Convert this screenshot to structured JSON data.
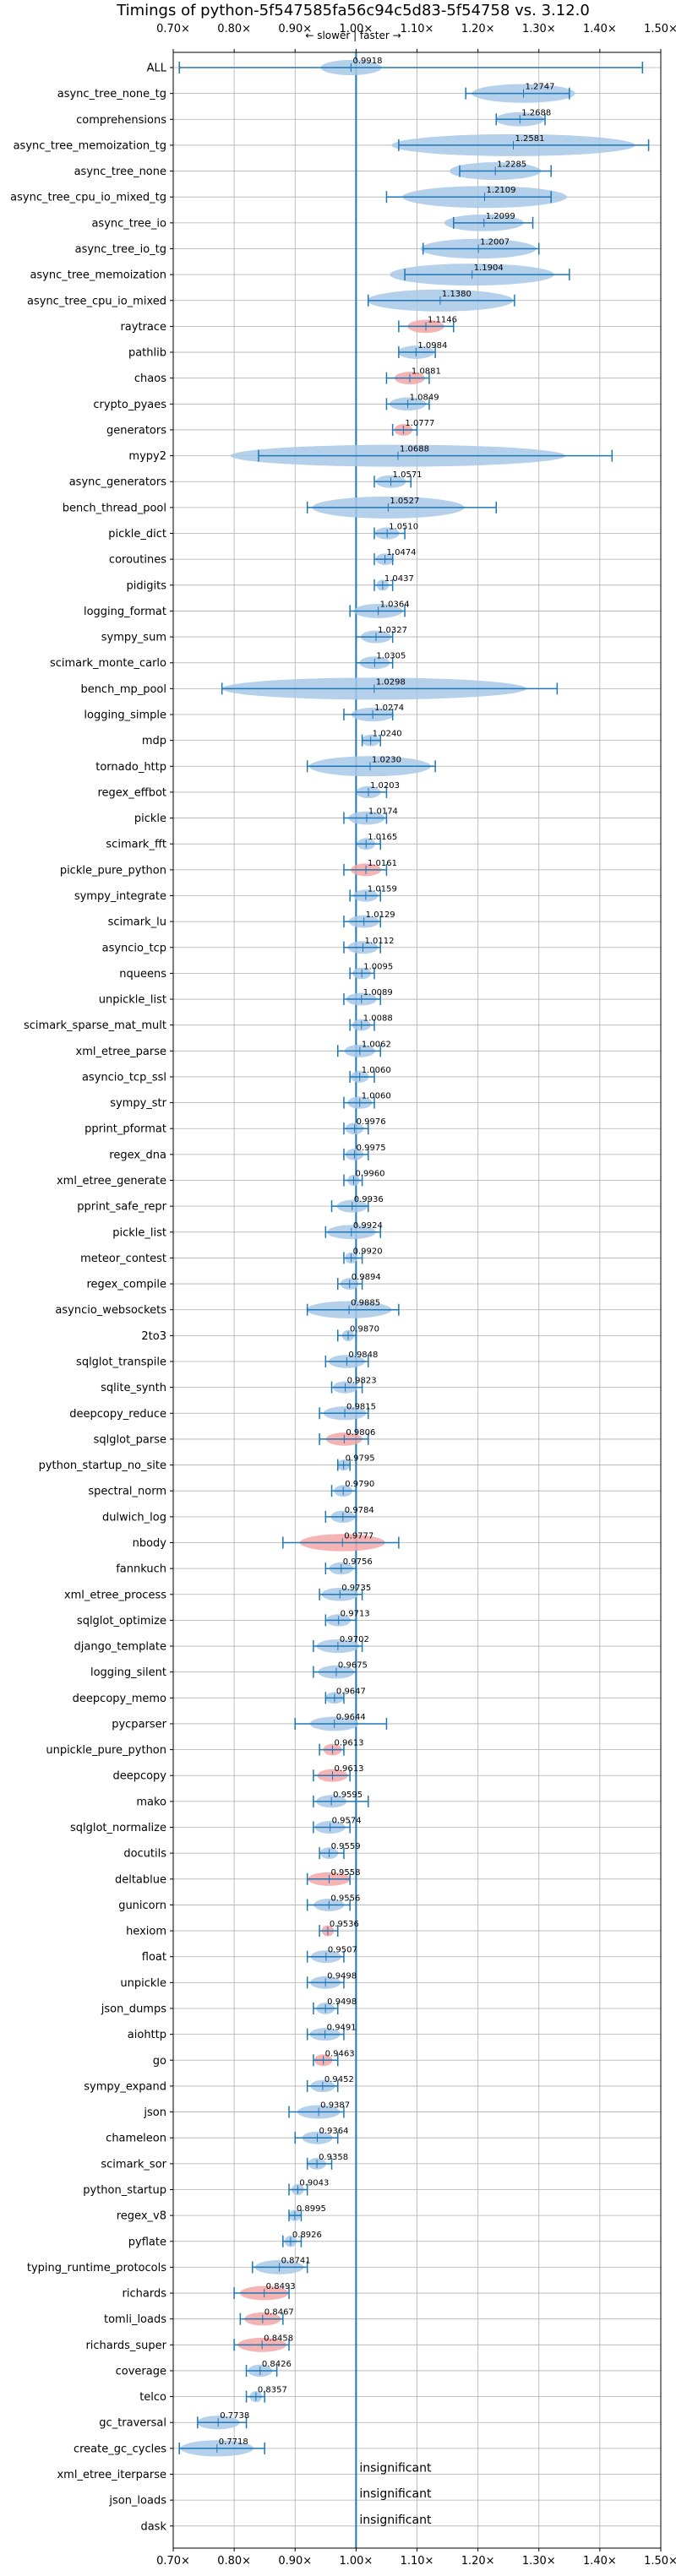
{
  "chart_data": {
    "type": "violin",
    "title": "Timings of python-5f547585fa56c94c5d83-5f54758 vs. 3.12.0",
    "direction_label": "← slower | faster →",
    "xlim": [
      0.7,
      1.5
    ],
    "xticks": [
      0.7,
      0.8,
      0.9,
      1.0,
      1.1,
      1.2,
      1.3,
      1.4,
      1.5
    ],
    "xtick_labels": [
      "0.70×",
      "0.80×",
      "0.90×",
      "1.00×",
      "1.10×",
      "1.20×",
      "1.30×",
      "1.40×",
      "1.50×"
    ],
    "reference_line": 1.0,
    "grid": true,
    "colors": {
      "normal": "#a8c8e8",
      "highlight": "#f4a6a6",
      "whisker": "#1f77b4",
      "refline": "#1f77b4",
      "grid": "#b0b0b0"
    },
    "benchmarks": [
      {
        "name": "ALL",
        "value": 0.9918,
        "label": "0.9918",
        "lo": 0.71,
        "hi": 1.47,
        "spread": 0.1,
        "highlight": false
      },
      {
        "name": "async_tree_none_tg",
        "value": 1.2747,
        "label": "1.2747",
        "lo": 1.18,
        "hi": 1.35,
        "spread": 0.17,
        "highlight": false
      },
      {
        "name": "comprehensions",
        "value": 1.2688,
        "label": "1.2688",
        "lo": 1.23,
        "hi": 1.31,
        "spread": 0.08,
        "highlight": false
      },
      {
        "name": "async_tree_memoization_tg",
        "value": 1.2581,
        "label": "1.2581",
        "lo": 1.07,
        "hi": 1.48,
        "spread": 0.4,
        "highlight": false
      },
      {
        "name": "async_tree_none",
        "value": 1.2285,
        "label": "1.2285",
        "lo": 1.17,
        "hi": 1.32,
        "spread": 0.15,
        "highlight": false
      },
      {
        "name": "async_tree_cpu_io_mixed_tg",
        "value": 1.2109,
        "label": "1.2109",
        "lo": 1.05,
        "hi": 1.32,
        "spread": 0.27,
        "highlight": false
      },
      {
        "name": "async_tree_io",
        "value": 1.2099,
        "label": "1.2099",
        "lo": 1.16,
        "hi": 1.29,
        "spread": 0.13,
        "highlight": false
      },
      {
        "name": "async_tree_io_tg",
        "value": 1.2007,
        "label": "1.2007",
        "lo": 1.11,
        "hi": 1.3,
        "spread": 0.19,
        "highlight": false
      },
      {
        "name": "async_tree_memoization",
        "value": 1.1904,
        "label": "1.1904",
        "lo": 1.08,
        "hi": 1.35,
        "spread": 0.27,
        "highlight": false
      },
      {
        "name": "async_tree_cpu_io_mixed",
        "value": 1.138,
        "label": "1.1380",
        "lo": 1.02,
        "hi": 1.26,
        "spread": 0.24,
        "highlight": false
      },
      {
        "name": "raytrace",
        "value": 1.1146,
        "label": "1.1146",
        "lo": 1.07,
        "hi": 1.16,
        "spread": 0.06,
        "highlight": true
      },
      {
        "name": "pathlib",
        "value": 1.0984,
        "label": "1.0984",
        "lo": 1.07,
        "hi": 1.13,
        "spread": 0.06,
        "highlight": false
      },
      {
        "name": "chaos",
        "value": 1.0881,
        "label": "1.0881",
        "lo": 1.05,
        "hi": 1.12,
        "spread": 0.05,
        "highlight": true
      },
      {
        "name": "crypto_pyaes",
        "value": 1.0849,
        "label": "1.0849",
        "lo": 1.05,
        "hi": 1.12,
        "spread": 0.06,
        "highlight": false
      },
      {
        "name": "generators",
        "value": 1.0777,
        "label": "1.0777",
        "lo": 1.06,
        "hi": 1.1,
        "spread": 0.03,
        "highlight": true
      },
      {
        "name": "mypy2",
        "value": 1.0688,
        "label": "1.0688",
        "lo": 0.84,
        "hi": 1.42,
        "spread": 0.55,
        "highlight": false
      },
      {
        "name": "async_generators",
        "value": 1.0571,
        "label": "1.0571",
        "lo": 1.03,
        "hi": 1.09,
        "spread": 0.05,
        "highlight": false
      },
      {
        "name": "bench_thread_pool",
        "value": 1.0527,
        "label": "1.0527",
        "lo": 0.92,
        "hi": 1.23,
        "spread": 0.25,
        "highlight": false
      },
      {
        "name": "pickle_dict",
        "value": 1.051,
        "label": "1.0510",
        "lo": 1.03,
        "hi": 1.08,
        "spread": 0.04,
        "highlight": false
      },
      {
        "name": "coroutines",
        "value": 1.0474,
        "label": "1.0474",
        "lo": 1.03,
        "hi": 1.06,
        "spread": 0.03,
        "highlight": false
      },
      {
        "name": "pidigits",
        "value": 1.0437,
        "label": "1.0437",
        "lo": 1.03,
        "hi": 1.06,
        "spread": 0.02,
        "highlight": false
      },
      {
        "name": "logging_format",
        "value": 1.0364,
        "label": "1.0364",
        "lo": 0.99,
        "hi": 1.08,
        "spread": 0.08,
        "highlight": false
      },
      {
        "name": "sympy_sum",
        "value": 1.0327,
        "label": "1.0327",
        "lo": 1.0,
        "hi": 1.06,
        "spread": 0.05,
        "highlight": false
      },
      {
        "name": "scimark_monte_carlo",
        "value": 1.0305,
        "label": "1.0305",
        "lo": 1.0,
        "hi": 1.06,
        "spread": 0.05,
        "highlight": false
      },
      {
        "name": "bench_mp_pool",
        "value": 1.0298,
        "label": "1.0298",
        "lo": 0.78,
        "hi": 1.33,
        "spread": 0.5,
        "highlight": false
      },
      {
        "name": "logging_simple",
        "value": 1.0274,
        "label": "1.0274",
        "lo": 0.98,
        "hi": 1.06,
        "spread": 0.07,
        "highlight": false
      },
      {
        "name": "mdp",
        "value": 1.024,
        "label": "1.0240",
        "lo": 1.01,
        "hi": 1.04,
        "spread": 0.03,
        "highlight": false
      },
      {
        "name": "tornado_http",
        "value": 1.023,
        "label": "1.0230",
        "lo": 0.92,
        "hi": 1.13,
        "spread": 0.2,
        "highlight": false
      },
      {
        "name": "regex_effbot",
        "value": 1.0203,
        "label": "1.0203",
        "lo": 1.0,
        "hi": 1.05,
        "spread": 0.04,
        "highlight": false
      },
      {
        "name": "pickle",
        "value": 1.0174,
        "label": "1.0174",
        "lo": 0.98,
        "hi": 1.05,
        "spread": 0.06,
        "highlight": false
      },
      {
        "name": "scimark_fft",
        "value": 1.0165,
        "label": "1.0165",
        "lo": 1.0,
        "hi": 1.04,
        "spread": 0.03,
        "highlight": false
      },
      {
        "name": "pickle_pure_python",
        "value": 1.0161,
        "label": "1.0161",
        "lo": 0.98,
        "hi": 1.05,
        "spread": 0.05,
        "highlight": true
      },
      {
        "name": "sympy_integrate",
        "value": 1.0159,
        "label": "1.0159",
        "lo": 0.99,
        "hi": 1.04,
        "spread": 0.04,
        "highlight": false
      },
      {
        "name": "scimark_lu",
        "value": 1.0129,
        "label": "1.0129",
        "lo": 0.98,
        "hi": 1.04,
        "spread": 0.05,
        "highlight": false
      },
      {
        "name": "asyncio_tcp",
        "value": 1.0112,
        "label": "1.0112",
        "lo": 0.98,
        "hi": 1.04,
        "spread": 0.05,
        "highlight": false
      },
      {
        "name": "nqueens",
        "value": 1.0095,
        "label": "1.0095",
        "lo": 0.99,
        "hi": 1.03,
        "spread": 0.03,
        "highlight": false
      },
      {
        "name": "unpickle_list",
        "value": 1.0089,
        "label": "1.0089",
        "lo": 0.98,
        "hi": 1.04,
        "spread": 0.05,
        "highlight": false
      },
      {
        "name": "scimark_sparse_mat_mult",
        "value": 1.0088,
        "label": "1.0088",
        "lo": 0.99,
        "hi": 1.03,
        "spread": 0.03,
        "highlight": false
      },
      {
        "name": "xml_etree_parse",
        "value": 1.0062,
        "label": "1.0062",
        "lo": 0.97,
        "hi": 1.04,
        "spread": 0.05,
        "highlight": false
      },
      {
        "name": "asyncio_tcp_ssl",
        "value": 1.006,
        "label": "1.0060",
        "lo": 0.99,
        "hi": 1.03,
        "spread": 0.03,
        "highlight": false
      },
      {
        "name": "sympy_str",
        "value": 1.006,
        "label": "1.0060",
        "lo": 0.98,
        "hi": 1.03,
        "spread": 0.04,
        "highlight": false
      },
      {
        "name": "pprint_pformat",
        "value": 0.9976,
        "label": "0.9976",
        "lo": 0.98,
        "hi": 1.02,
        "spread": 0.03,
        "highlight": false
      },
      {
        "name": "regex_dna",
        "value": 0.9975,
        "label": "0.9975",
        "lo": 0.98,
        "hi": 1.02,
        "spread": 0.03,
        "highlight": false
      },
      {
        "name": "xml_etree_generate",
        "value": 0.996,
        "label": "0.9960",
        "lo": 0.98,
        "hi": 1.01,
        "spread": 0.02,
        "highlight": false
      },
      {
        "name": "pprint_safe_repr",
        "value": 0.9936,
        "label": "0.9936",
        "lo": 0.96,
        "hi": 1.02,
        "spread": 0.05,
        "highlight": false
      },
      {
        "name": "pickle_list",
        "value": 0.9924,
        "label": "0.9924",
        "lo": 0.95,
        "hi": 1.04,
        "spread": 0.08,
        "highlight": false
      },
      {
        "name": "meteor_contest",
        "value": 0.992,
        "label": "0.9920",
        "lo": 0.98,
        "hi": 1.01,
        "spread": 0.02,
        "highlight": false
      },
      {
        "name": "regex_compile",
        "value": 0.9894,
        "label": "0.9894",
        "lo": 0.97,
        "hi": 1.01,
        "spread": 0.03,
        "highlight": false
      },
      {
        "name": "asyncio_websockets",
        "value": 0.9885,
        "label": "0.9885",
        "lo": 0.92,
        "hi": 1.07,
        "spread": 0.14,
        "highlight": false
      },
      {
        "name": "2to3",
        "value": 0.987,
        "label": "0.9870",
        "lo": 0.97,
        "hi": 1.0,
        "spread": 0.02,
        "highlight": false
      },
      {
        "name": "sqlglot_transpile",
        "value": 0.9848,
        "label": "0.9848",
        "lo": 0.95,
        "hi": 1.02,
        "spread": 0.06,
        "highlight": false
      },
      {
        "name": "sqlite_synth",
        "value": 0.9823,
        "label": "0.9823",
        "lo": 0.96,
        "hi": 1.01,
        "spread": 0.04,
        "highlight": false
      },
      {
        "name": "deepcopy_reduce",
        "value": 0.9815,
        "label": "0.9815",
        "lo": 0.94,
        "hi": 1.02,
        "spread": 0.07,
        "highlight": false
      },
      {
        "name": "sqlglot_parse",
        "value": 0.9806,
        "label": "0.9806",
        "lo": 0.94,
        "hi": 1.02,
        "spread": 0.06,
        "highlight": true
      },
      {
        "name": "python_startup_no_site",
        "value": 0.9795,
        "label": "0.9795",
        "lo": 0.97,
        "hi": 0.99,
        "spread": 0.02,
        "highlight": false
      },
      {
        "name": "spectral_norm",
        "value": 0.979,
        "label": "0.9790",
        "lo": 0.96,
        "hi": 1.0,
        "spread": 0.03,
        "highlight": false
      },
      {
        "name": "dulwich_log",
        "value": 0.9784,
        "label": "0.9784",
        "lo": 0.95,
        "hi": 1.0,
        "spread": 0.04,
        "highlight": false
      },
      {
        "name": "nbody",
        "value": 0.9777,
        "label": "0.9777",
        "lo": 0.88,
        "hi": 1.07,
        "spread": 0.14,
        "highlight": true
      },
      {
        "name": "fannkuch",
        "value": 0.9756,
        "label": "0.9756",
        "lo": 0.95,
        "hi": 1.0,
        "spread": 0.04,
        "highlight": false
      },
      {
        "name": "xml_etree_process",
        "value": 0.9735,
        "label": "0.9735",
        "lo": 0.94,
        "hi": 1.01,
        "spread": 0.06,
        "highlight": false
      },
      {
        "name": "sqlglot_optimize",
        "value": 0.9713,
        "label": "0.9713",
        "lo": 0.95,
        "hi": 1.0,
        "spread": 0.04,
        "highlight": false
      },
      {
        "name": "django_template",
        "value": 0.9702,
        "label": "0.9702",
        "lo": 0.93,
        "hi": 1.01,
        "spread": 0.07,
        "highlight": false
      },
      {
        "name": "logging_silent",
        "value": 0.9675,
        "label": "0.9675",
        "lo": 0.93,
        "hi": 1.0,
        "spread": 0.06,
        "highlight": false
      },
      {
        "name": "deepcopy_memo",
        "value": 0.9647,
        "label": "0.9647",
        "lo": 0.95,
        "hi": 0.98,
        "spread": 0.03,
        "highlight": false
      },
      {
        "name": "pycparser",
        "value": 0.9644,
        "label": "0.9644",
        "lo": 0.9,
        "hi": 1.05,
        "spread": 0.08,
        "highlight": false
      },
      {
        "name": "unpickle_pure_python",
        "value": 0.9613,
        "label": "0.9613",
        "lo": 0.94,
        "hi": 0.98,
        "spread": 0.03,
        "highlight": true
      },
      {
        "name": "deepcopy",
        "value": 0.9613,
        "label": "0.9613",
        "lo": 0.93,
        "hi": 0.99,
        "spread": 0.05,
        "highlight": true
      },
      {
        "name": "mako",
        "value": 0.9595,
        "label": "0.9595",
        "lo": 0.93,
        "hi": 1.02,
        "spread": 0.05,
        "highlight": false
      },
      {
        "name": "sqlglot_normalize",
        "value": 0.9574,
        "label": "0.9574",
        "lo": 0.93,
        "hi": 0.99,
        "spread": 0.05,
        "highlight": false
      },
      {
        "name": "docutils",
        "value": 0.9559,
        "label": "0.9559",
        "lo": 0.94,
        "hi": 0.98,
        "spread": 0.03,
        "highlight": false
      },
      {
        "name": "deltablue",
        "value": 0.9558,
        "label": "0.9558",
        "lo": 0.92,
        "hi": 0.99,
        "spread": 0.07,
        "highlight": true
      },
      {
        "name": "gunicorn",
        "value": 0.9556,
        "label": "0.9556",
        "lo": 0.92,
        "hi": 0.99,
        "spread": 0.05,
        "highlight": false
      },
      {
        "name": "hexiom",
        "value": 0.9536,
        "label": "0.9536",
        "lo": 0.94,
        "hi": 0.97,
        "spread": 0.02,
        "highlight": true
      },
      {
        "name": "float",
        "value": 0.9507,
        "label": "0.9507",
        "lo": 0.92,
        "hi": 0.98,
        "spread": 0.05,
        "highlight": false
      },
      {
        "name": "unpickle",
        "value": 0.9498,
        "label": "0.9498",
        "lo": 0.92,
        "hi": 0.98,
        "spread": 0.05,
        "highlight": false
      },
      {
        "name": "json_dumps",
        "value": 0.9498,
        "label": "0.9498",
        "lo": 0.93,
        "hi": 0.97,
        "spread": 0.03,
        "highlight": false
      },
      {
        "name": "aiohttp",
        "value": 0.9491,
        "label": "0.9491",
        "lo": 0.92,
        "hi": 0.98,
        "spread": 0.05,
        "highlight": false
      },
      {
        "name": "go",
        "value": 0.9463,
        "label": "0.9463",
        "lo": 0.93,
        "hi": 0.97,
        "spread": 0.03,
        "highlight": true
      },
      {
        "name": "sympy_expand",
        "value": 0.9452,
        "label": "0.9452",
        "lo": 0.92,
        "hi": 0.97,
        "spread": 0.04,
        "highlight": false
      },
      {
        "name": "json",
        "value": 0.9387,
        "label": "0.9387",
        "lo": 0.89,
        "hi": 0.98,
        "spread": 0.07,
        "highlight": false
      },
      {
        "name": "chameleon",
        "value": 0.9364,
        "label": "0.9364",
        "lo": 0.9,
        "hi": 0.97,
        "spread": 0.05,
        "highlight": false
      },
      {
        "name": "scimark_sor",
        "value": 0.9358,
        "label": "0.9358",
        "lo": 0.92,
        "hi": 0.96,
        "spread": 0.03,
        "highlight": false
      },
      {
        "name": "python_startup",
        "value": 0.9043,
        "label": "0.9043",
        "lo": 0.89,
        "hi": 0.92,
        "spread": 0.02,
        "highlight": false
      },
      {
        "name": "regex_v8",
        "value": 0.8995,
        "label": "0.8995",
        "lo": 0.89,
        "hi": 0.91,
        "spread": 0.02,
        "highlight": false
      },
      {
        "name": "pyflate",
        "value": 0.8926,
        "label": "0.8926",
        "lo": 0.88,
        "hi": 0.91,
        "spread": 0.02,
        "highlight": false
      },
      {
        "name": "typing_runtime_protocols",
        "value": 0.8741,
        "label": "0.8741",
        "lo": 0.83,
        "hi": 0.92,
        "spread": 0.08,
        "highlight": false
      },
      {
        "name": "richards",
        "value": 0.8493,
        "label": "0.8493",
        "lo": 0.8,
        "hi": 0.89,
        "spread": 0.08,
        "highlight": true
      },
      {
        "name": "tomli_loads",
        "value": 0.8467,
        "label": "0.8467",
        "lo": 0.81,
        "hi": 0.88,
        "spread": 0.06,
        "highlight": true
      },
      {
        "name": "richards_super",
        "value": 0.8458,
        "label": "0.8458",
        "lo": 0.8,
        "hi": 0.89,
        "spread": 0.08,
        "highlight": true
      },
      {
        "name": "coverage",
        "value": 0.8426,
        "label": "0.8426",
        "lo": 0.82,
        "hi": 0.87,
        "spread": 0.04,
        "highlight": false
      },
      {
        "name": "telco",
        "value": 0.8357,
        "label": "0.8357",
        "lo": 0.82,
        "hi": 0.85,
        "spread": 0.02,
        "highlight": false
      },
      {
        "name": "gc_traversal",
        "value": 0.7738,
        "label": "0.7738",
        "lo": 0.74,
        "hi": 0.82,
        "spread": 0.07,
        "highlight": false
      },
      {
        "name": "create_gc_cycles",
        "value": 0.7718,
        "label": "0.7718",
        "lo": 0.71,
        "hi": 0.85,
        "spread": 0.12,
        "highlight": false
      },
      {
        "name": "xml_etree_iterparse",
        "value": null,
        "label": "insignificant",
        "highlight": false
      },
      {
        "name": "json_loads",
        "value": null,
        "label": "insignificant",
        "highlight": false
      },
      {
        "name": "dask",
        "value": null,
        "label": "insignificant",
        "highlight": false
      }
    ]
  }
}
